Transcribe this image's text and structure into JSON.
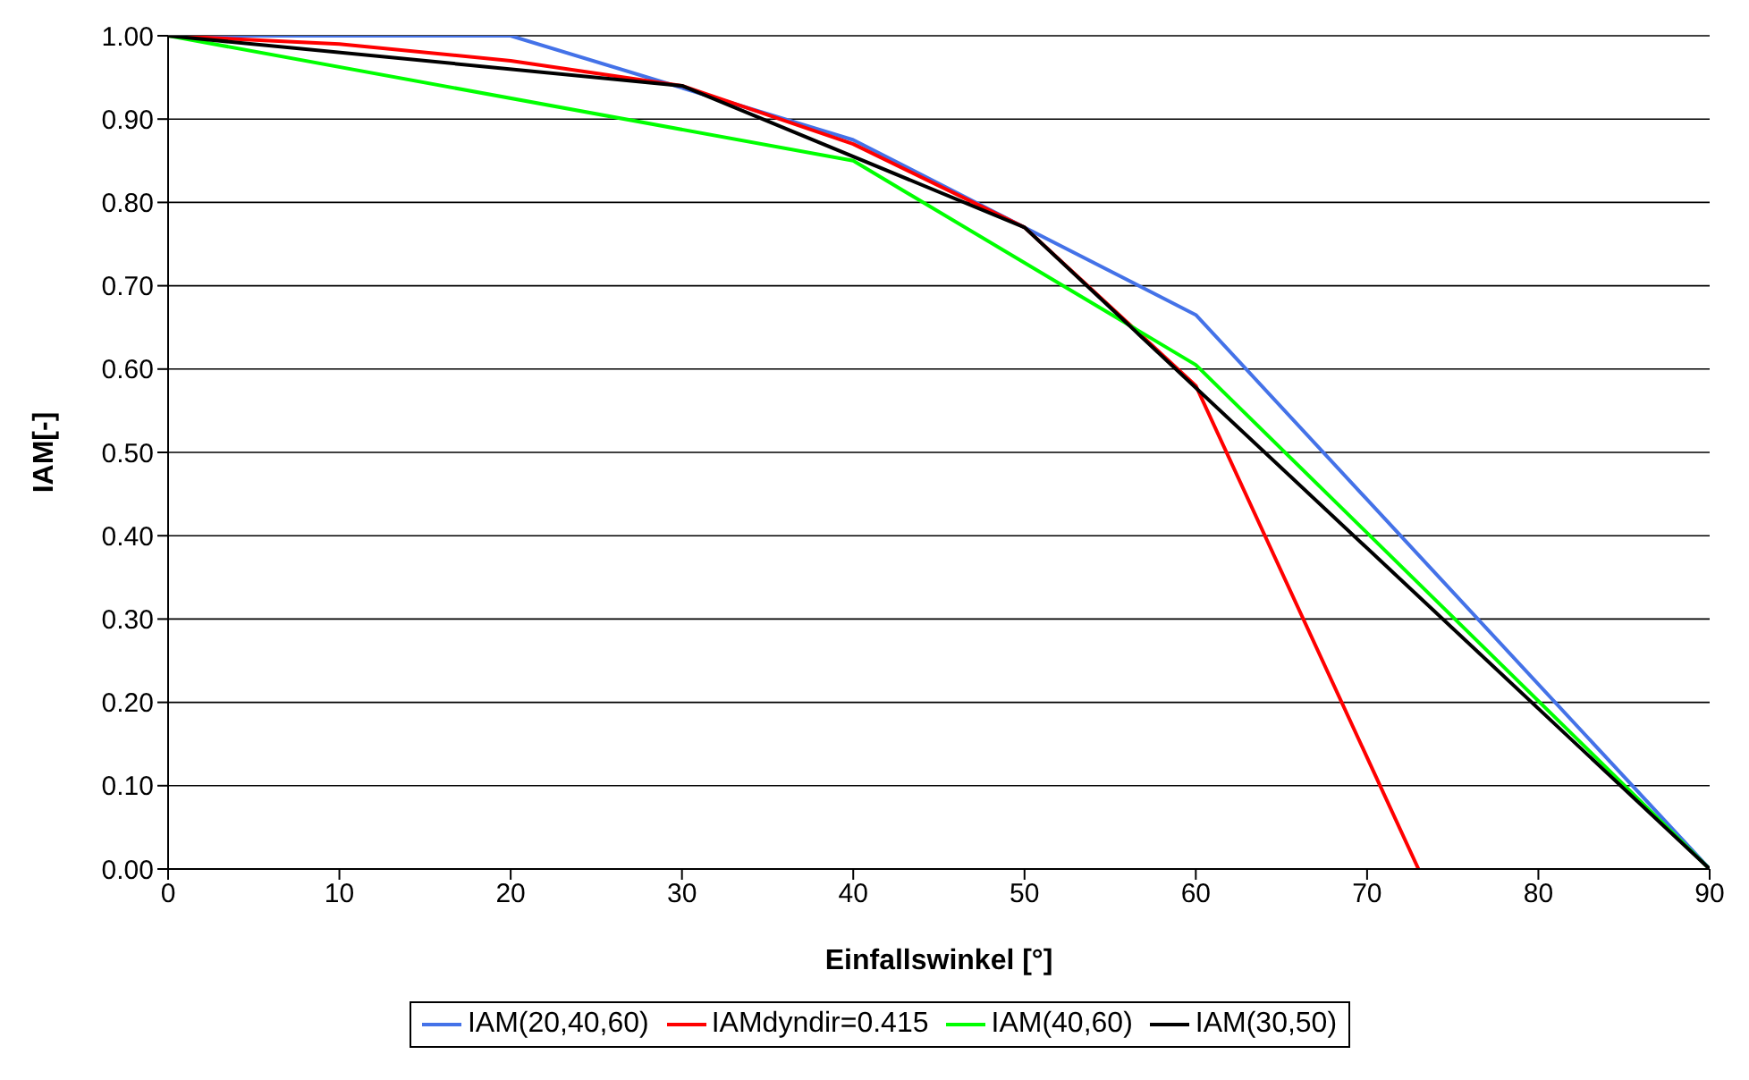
{
  "chart_data": {
    "type": "line",
    "xlabel": "Einfallswinkel [°]",
    "ylabel": "IAM[-]",
    "xlim": [
      0,
      90
    ],
    "xticks": [
      0,
      10,
      20,
      30,
      40,
      50,
      60,
      70,
      80,
      90
    ],
    "ylim": [
      0,
      1
    ],
    "yticks": [
      {
        "value": 0,
        "label": "0.00"
      },
      {
        "value": 0.1,
        "label": "0.10"
      },
      {
        "value": 0.2,
        "label": "0.20"
      },
      {
        "value": 0.3,
        "label": "0.30"
      },
      {
        "value": 0.4,
        "label": "0.40"
      },
      {
        "value": 0.5,
        "label": "0.50"
      },
      {
        "value": 0.6,
        "label": "0.60"
      },
      {
        "value": 0.7,
        "label": "0.70"
      },
      {
        "value": 0.8,
        "label": "0.80"
      },
      {
        "value": 0.9,
        "label": "0.90"
      },
      {
        "value": 1,
        "label": "1.00"
      }
    ],
    "grid": "y",
    "legend": "bottom",
    "marker": "none",
    "line_style": "solid",
    "series": [
      {
        "name": "IAM(20,40,60)",
        "color": "#4472e8",
        "x": [
          0,
          20,
          40,
          60,
          90
        ],
        "values": [
          1,
          1,
          0.875,
          0.665,
          0
        ]
      },
      {
        "name": "IAMdyndir=0.415",
        "color": "#ff0000",
        "x": [
          0,
          10,
          20,
          30,
          40,
          50,
          60,
          73
        ],
        "values": [
          1,
          0.99,
          0.97,
          0.94,
          0.87,
          0.77,
          0.58,
          0
        ]
      },
      {
        "name": "IAM(40,60)",
        "color": "#00ff00",
        "x": [
          0,
          40,
          60,
          90
        ],
        "values": [
          1,
          0.85,
          0.605,
          0
        ]
      },
      {
        "name": "IAM(30,50)",
        "color": "#000000",
        "x": [
          0,
          30,
          50,
          90
        ],
        "values": [
          1,
          0.94,
          0.77,
          0
        ]
      }
    ]
  }
}
